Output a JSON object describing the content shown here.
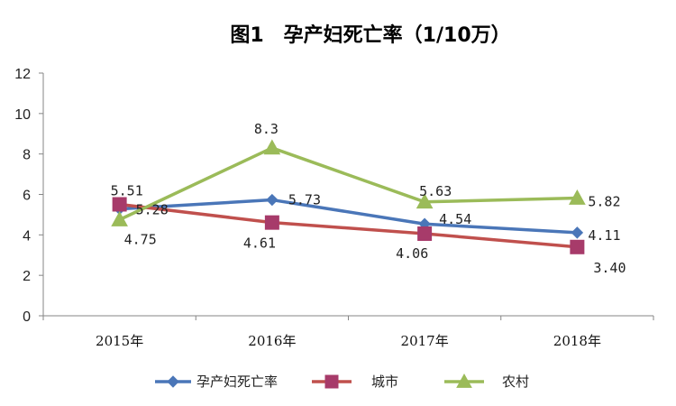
{
  "chart_data": {
    "type": "line",
    "title": "图1　孕产妇死亡率（1/10万）",
    "categories": [
      "2015年",
      "2016年",
      "2017年",
      "2018年"
    ],
    "ylim": [
      0,
      12
    ],
    "yticks": [
      "0",
      "2",
      "4",
      "6",
      "8",
      "10",
      "12"
    ],
    "grid": false,
    "legend_position": "bottom",
    "series": [
      {
        "name": "孕产妇死亡率",
        "values": [
          5.28,
          5.73,
          4.54,
          4.11
        ],
        "labels": [
          "5.28",
          "5.73",
          "4.54",
          "4.11"
        ],
        "color": "#4a76b8",
        "marker": "diamond"
      },
      {
        "name": "城市",
        "values": [
          5.51,
          4.61,
          4.06,
          3.4
        ],
        "labels": [
          "5.51",
          "4.61",
          "4.06",
          "3.40"
        ],
        "color": "#c0504d",
        "marker_color": "#a73b6a",
        "marker": "square"
      },
      {
        "name": "农村",
        "values": [
          4.75,
          8.3,
          5.63,
          5.82
        ],
        "labels": [
          "4.75",
          "8.3",
          "5.63",
          "5.82"
        ],
        "color": "#9bbb59",
        "marker": "triangle"
      }
    ]
  }
}
